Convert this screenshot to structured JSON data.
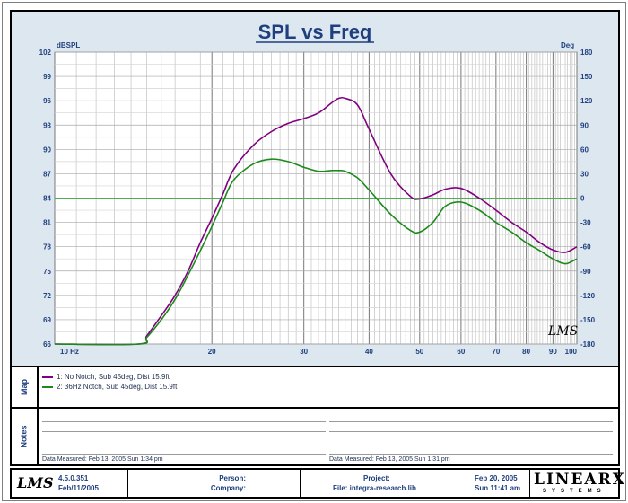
{
  "chart_data": {
    "type": "line",
    "title": "SPL vs Freq",
    "y_left_unit": "dBSPL",
    "y_right_unit": "Deg",
    "ylim": [
      66,
      102
    ],
    "y_ticks": [
      66,
      69,
      72,
      75,
      78,
      81,
      84,
      87,
      90,
      93,
      96,
      99,
      102
    ],
    "y2lim": [
      -180,
      180
    ],
    "y2_ticks": [
      -180,
      -150,
      -120,
      -90,
      -60,
      -30,
      0,
      30,
      60,
      90,
      120,
      150,
      180
    ],
    "x_scale": "log",
    "xlim": [
      10,
      100
    ],
    "x_tick_labels": [
      {
        "value": 10,
        "label": "10 Hz"
      },
      {
        "value": 20,
        "label": "20"
      },
      {
        "value": 30,
        "label": "30"
      },
      {
        "value": 40,
        "label": "40"
      },
      {
        "value": 50,
        "label": "50"
      },
      {
        "value": 60,
        "label": "60"
      },
      {
        "value": 70,
        "label": "70"
      },
      {
        "value": 80,
        "label": "80"
      },
      {
        "value": 90,
        "label": "90"
      },
      {
        "value": 100,
        "label": "100"
      }
    ],
    "grid": true,
    "series": [
      {
        "name": "1: No Notch, Sub 45deg, Dist 15.9ft",
        "color": "#800080",
        "x": [
          10,
          14.5,
          15,
          16,
          17,
          18,
          19,
          20,
          21,
          22,
          24,
          26,
          28,
          30,
          32,
          34,
          35,
          36,
          38,
          40,
          44,
          48,
          50,
          53,
          56,
          60,
          65,
          70,
          75,
          80,
          85,
          90,
          95,
          100
        ],
        "y": [
          66,
          66,
          67,
          69.5,
          72,
          75,
          78.5,
          81.5,
          84.5,
          87.5,
          90.5,
          92.2,
          93.2,
          93.8,
          94.5,
          95.8,
          96.3,
          96.3,
          95.5,
          92.5,
          87,
          84.2,
          83.9,
          84.4,
          85.1,
          85.2,
          84,
          82.5,
          81,
          79.8,
          78.5,
          77.6,
          77.3,
          78
        ]
      },
      {
        "name": "2: 36Hz Notch, Sub 45deg, Dist 15.9ft",
        "color": "#1a8a1a",
        "x": [
          10,
          14.5,
          15,
          16,
          17,
          18,
          19,
          20,
          21,
          22,
          24,
          26,
          28,
          30,
          32,
          34,
          35,
          36,
          38,
          40,
          44,
          48,
          50,
          53,
          56,
          60,
          65,
          70,
          75,
          80,
          85,
          90,
          95,
          100
        ],
        "y": [
          66,
          66,
          66.8,
          69,
          71.5,
          74.5,
          77.5,
          80.5,
          83.5,
          86.2,
          88.2,
          88.8,
          88.5,
          87.8,
          87.3,
          87.4,
          87.4,
          87.3,
          86.5,
          85,
          82,
          80,
          79.8,
          81,
          83,
          83.5,
          82.5,
          81,
          79.8,
          78.5,
          77.5,
          76.5,
          75.9,
          76.5
        ]
      }
    ]
  },
  "map_label": "Map",
  "notes_label": "Notes",
  "notes": [
    {
      "footer": "Data Measured: Feb 13, 2005  Sun  1:34 pm"
    },
    {
      "footer": "Data Measured: Feb 13, 2005  Sun  1:31 pm"
    }
  ],
  "footer": {
    "logo": "LMS",
    "version": "4.5.0.351",
    "version_date": "Feb/11/2005",
    "person_label": "Person:",
    "company_label": "Company:",
    "project_label": "Project:",
    "file_text": "File: integra-research.lib",
    "date": "Feb 20, 2005",
    "time": "Sun 11:41 am",
    "brand": "LINEARX",
    "brand_sub": "SYSTEMS"
  },
  "chart_logo": "LMS"
}
